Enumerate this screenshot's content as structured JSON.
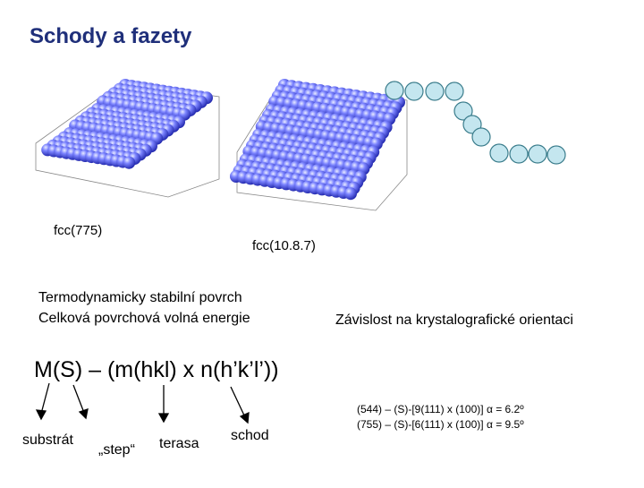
{
  "header": {
    "title": "Schody a fazety"
  },
  "figures": {
    "left_label": "fcc(775)",
    "right_label": "fcc(10.8.7)"
  },
  "notes": {
    "line1": "Termodynamicky stabilní povrch",
    "line2": "Celková povrchová volná energie",
    "right": "Závislost na krystalografické orientaci"
  },
  "formula": "M(S) – (m(hkl) x n(h’k’l’))",
  "parts": {
    "substrate": "substrát",
    "step": "„step“",
    "terrace": "terasa",
    "stair": "schod"
  },
  "examples": [
    "(544) – (S)-[9(111) x (100)]  α = 6.2º",
    "(755) – (S)-[6(111) x (100)]  α = 9.5º"
  ]
}
